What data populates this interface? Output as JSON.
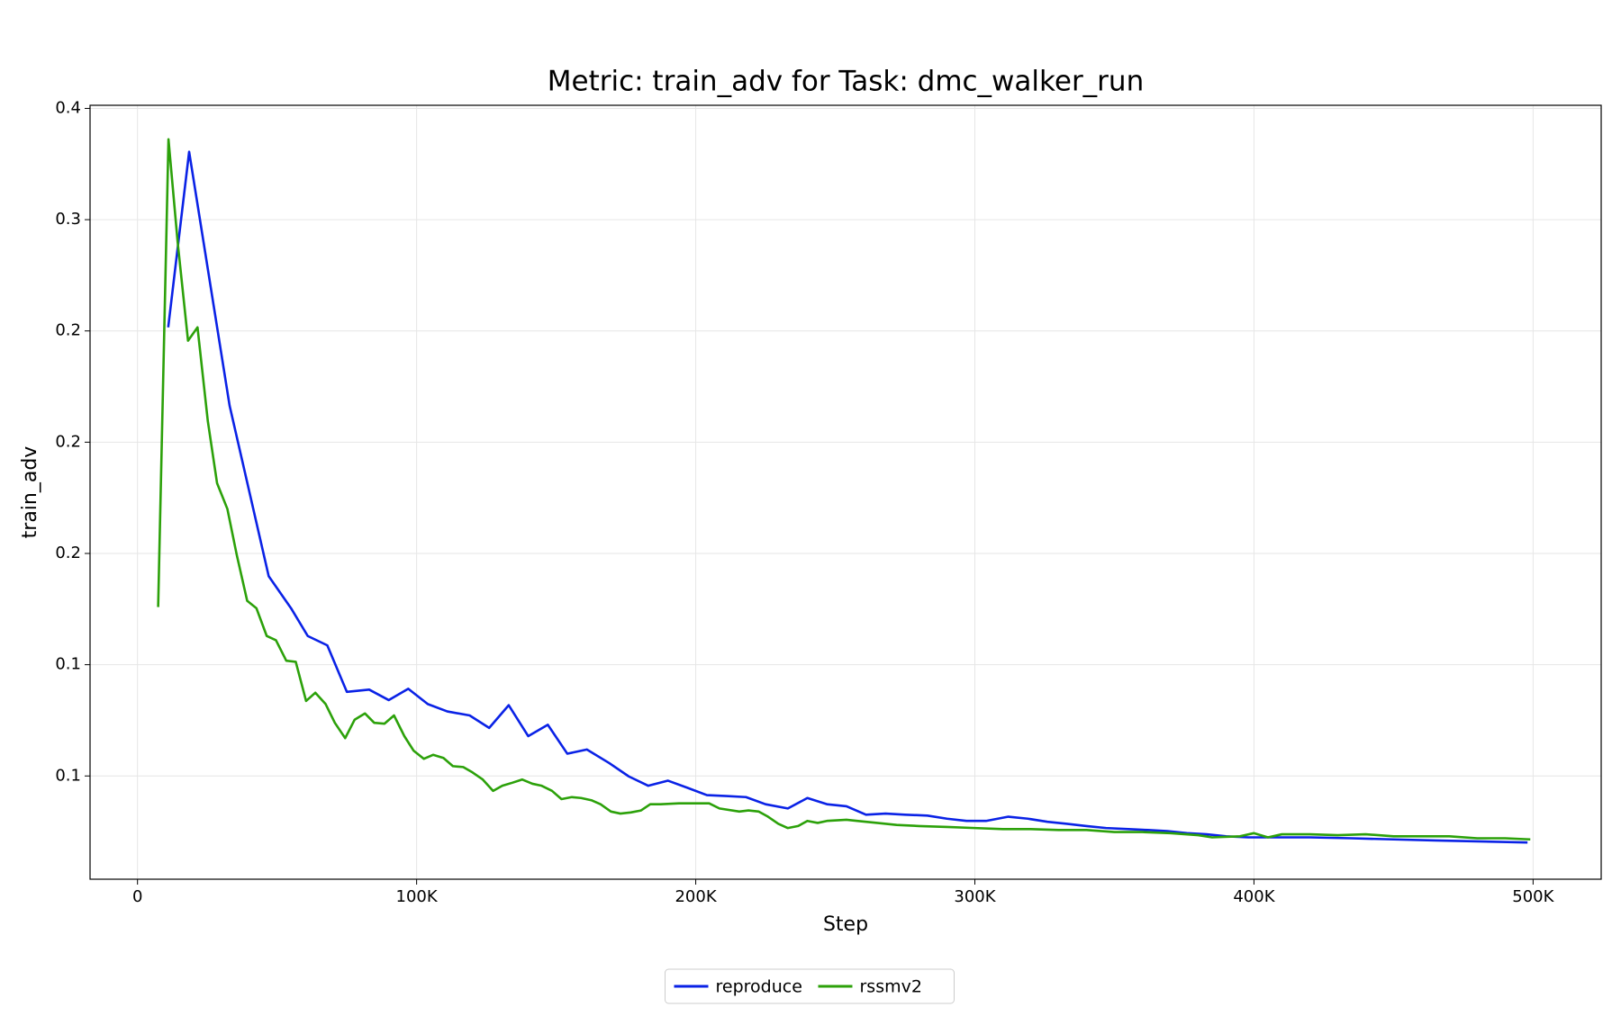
{
  "chart_data": {
    "type": "line",
    "title": "Metric: train_adv for Task: dmc_walker_run",
    "x_label": "Step",
    "y_label": "train_adv",
    "xlim": [
      -17000,
      524400
    ],
    "ylim": [
      0.0036,
      0.3514
    ],
    "xticks": [
      0,
      {
        "value": 100000,
        "label": "100K"
      },
      {
        "value": 200000,
        "label": "200K"
      },
      {
        "value": 300000,
        "label": "300K"
      },
      {
        "value": 400000,
        "label": "400K"
      },
      {
        "value": 500000,
        "label": "500K"
      }
    ],
    "yticks": [
      {
        "value": 0.35,
        "label": "0.4"
      },
      {
        "value": 0.3,
        "label": "0.3"
      },
      {
        "value": 0.25,
        "label": "0.2"
      },
      {
        "value": 0.2,
        "label": "0.2"
      },
      {
        "value": 0.15,
        "label": "0.2"
      },
      {
        "value": 0.1,
        "label": "0.1"
      },
      {
        "value": 0.05,
        "label": "0.1"
      }
    ],
    "grid": true,
    "legend": "bottom",
    "series": [
      {
        "name": "reproduce",
        "color": "#0a22e6",
        "x": [
          11000,
          18500,
          33000,
          47000,
          55000,
          61000,
          68000,
          75000,
          83000,
          90000,
          97000,
          104000,
          111000,
          119000,
          126000,
          133000,
          140000,
          147000,
          154000,
          161000,
          169000,
          176000,
          183000,
          190000,
          197000,
          204000,
          211000,
          218000,
          225000,
          233000,
          240000,
          247000,
          254000,
          261000,
          268000,
          275000,
          283000,
          290000,
          297000,
          304000,
          312000,
          319000,
          326000,
          333000,
          340000,
          347000,
          355000,
          362000,
          369000,
          376000,
          383000,
          390000,
          398000,
          405000,
          420000,
          435000,
          450000,
          465000,
          480000,
          498000
        ],
        "values": [
          0.2516,
          0.3305,
          0.2164,
          0.1398,
          0.1254,
          0.1129,
          0.1087,
          0.0878,
          0.0888,
          0.0841,
          0.0892,
          0.0823,
          0.079,
          0.0772,
          0.0716,
          0.0818,
          0.0679,
          0.073,
          0.06,
          0.0619,
          0.0558,
          0.0498,
          0.0456,
          0.0479,
          0.0447,
          0.0414,
          0.041,
          0.0405,
          0.0373,
          0.0354,
          0.0401,
          0.0373,
          0.0364,
          0.0326,
          0.0331,
          0.0326,
          0.0322,
          0.0308,
          0.0298,
          0.0298,
          0.0317,
          0.0308,
          0.0294,
          0.0285,
          0.0275,
          0.0266,
          0.0261,
          0.0257,
          0.0252,
          0.0243,
          0.0238,
          0.0229,
          0.0224,
          0.0224,
          0.0224,
          0.022,
          0.0215,
          0.021,
          0.0206,
          0.0201
        ]
      },
      {
        "name": "rssmv2",
        "color": "#2ca10a",
        "x": [
          7400,
          11100,
          14400,
          18100,
          21500,
          25200,
          28500,
          32200,
          35600,
          39300,
          42600,
          46300,
          49600,
          53300,
          56700,
          60400,
          63700,
          67400,
          70700,
          74400,
          77800,
          81500,
          84800,
          88500,
          91900,
          95600,
          98900,
          102600,
          105900,
          109600,
          113000,
          116700,
          120000,
          123700,
          127400,
          130700,
          134400,
          137800,
          141500,
          144800,
          148500,
          151900,
          155600,
          158900,
          162600,
          165900,
          169600,
          173000,
          176700,
          180400,
          183700,
          187400,
          194000,
          201000,
          204800,
          208500,
          215600,
          218900,
          222600,
          225900,
          229600,
          233000,
          236700,
          240000,
          243700,
          247000,
          254000,
          257800,
          265000,
          272000,
          280000,
          290000,
          300000,
          310000,
          320000,
          330000,
          340000,
          350000,
          360000,
          370000,
          380000,
          385000,
          395000,
          400000,
          405000,
          410000,
          420000,
          430000,
          440000,
          450000,
          460000,
          470000,
          480000,
          490000,
          499000
        ],
        "values": [
          0.1259,
          0.3361,
          0.2897,
          0.2456,
          0.2516,
          0.2094,
          0.1816,
          0.17,
          0.1491,
          0.1287,
          0.1254,
          0.1129,
          0.111,
          0.1018,
          0.1013,
          0.0837,
          0.0874,
          0.0823,
          0.0739,
          0.067,
          0.0753,
          0.0781,
          0.0739,
          0.0735,
          0.0772,
          0.0679,
          0.0614,
          0.0577,
          0.0595,
          0.0581,
          0.0544,
          0.054,
          0.0516,
          0.0484,
          0.0433,
          0.0456,
          0.047,
          0.0484,
          0.0465,
          0.0456,
          0.0433,
          0.0396,
          0.0405,
          0.0401,
          0.0391,
          0.0373,
          0.034,
          0.0331,
          0.0336,
          0.0345,
          0.0373,
          0.0373,
          0.0377,
          0.0377,
          0.0377,
          0.0354,
          0.034,
          0.0345,
          0.034,
          0.0317,
          0.0285,
          0.0266,
          0.0275,
          0.0298,
          0.0289,
          0.0298,
          0.0303,
          0.0298,
          0.0289,
          0.028,
          0.0275,
          0.0271,
          0.0266,
          0.0261,
          0.0261,
          0.0257,
          0.0257,
          0.0248,
          0.0248,
          0.0243,
          0.0234,
          0.0224,
          0.0229,
          0.0243,
          0.0224,
          0.0238,
          0.0238,
          0.0234,
          0.0238,
          0.0229,
          0.0229,
          0.0229,
          0.022,
          0.022,
          0.0215
        ]
      }
    ]
  }
}
